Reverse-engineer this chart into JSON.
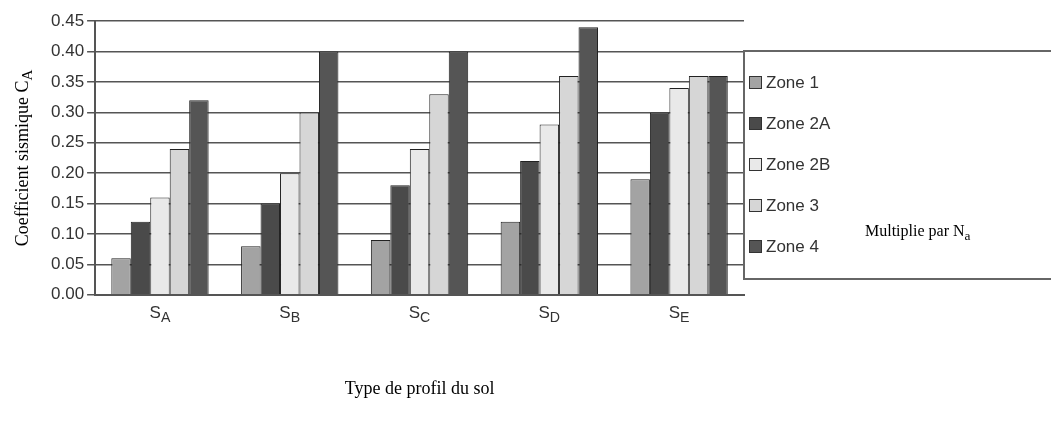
{
  "chart_data": {
    "type": "bar",
    "xlabel": "Type de profil du sol",
    "ylabel": "Coefficient sismique   C$_{A}$",
    "categories": [
      "S$_{A}$",
      "S$_{B}$",
      "S$_{C}$",
      "S$_{D}$",
      "S$_{E}$"
    ],
    "series": [
      {
        "name": "Zone 1",
        "color": "#a3a3a3",
        "values": [
          0.06,
          0.08,
          0.09,
          0.12,
          0.19
        ]
      },
      {
        "name": "Zone 2A",
        "color": "#4a4a4a",
        "values": [
          0.12,
          0.15,
          0.18,
          0.22,
          0.3
        ]
      },
      {
        "name": "Zone 2B",
        "color": "#e9e9e9",
        "values": [
          0.16,
          0.2,
          0.24,
          0.28,
          0.34
        ]
      },
      {
        "name": "Zone 3",
        "color": "#d6d6d6",
        "values": [
          0.24,
          0.3,
          0.33,
          0.36,
          0.36
        ]
      },
      {
        "name": "Zone 4",
        "color": "#555555",
        "values": [
          0.32,
          0.4,
          0.4,
          0.44,
          0.36
        ]
      }
    ],
    "ylim": [
      0,
      0.45
    ],
    "yticks": [
      {
        "value": 0,
        "label": "0.00"
      },
      {
        "value": 0.05,
        "label": "0.05"
      },
      {
        "value": 0.1,
        "label": "0.10"
      },
      {
        "value": 0.15,
        "label": "0.15"
      },
      {
        "value": 0.2,
        "label": "0.20"
      },
      {
        "value": 0.25,
        "label": "0.25"
      },
      {
        "value": 0.3,
        "label": "0.30"
      },
      {
        "value": 0.35,
        "label": "0.35"
      },
      {
        "value": 0.4,
        "label": "0.40"
      },
      {
        "value": 0.45,
        "label": "0.45"
      }
    ],
    "grid": "y",
    "legend": "right",
    "annotations": [
      "Multiplie par N$_{a}$"
    ]
  }
}
